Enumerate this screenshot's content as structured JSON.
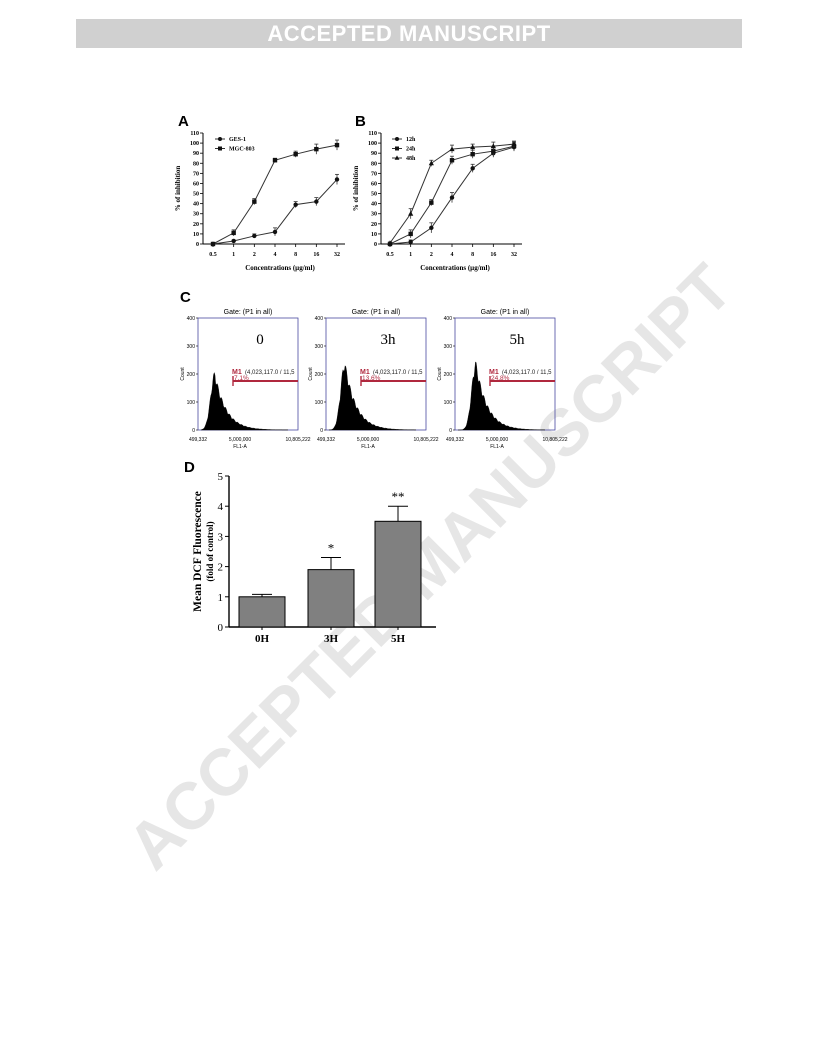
{
  "banner": {
    "text": "ACCEPTED MANUSCRIPT"
  },
  "watermark": {
    "text": "ACCEPTED MANUSCRIPT",
    "color": "#e6e6e6"
  },
  "chart_data": [
    {
      "panel": "A",
      "type": "line",
      "categories": [
        "0.5",
        "1",
        "2",
        "4",
        "8",
        "16",
        "32"
      ],
      "series": [
        {
          "name": "GES-1",
          "values": [
            0,
            3,
            8,
            12,
            39,
            42,
            64
          ],
          "errors": [
            1,
            1,
            2,
            4,
            3,
            4,
            5
          ]
        },
        {
          "name": "MGC-803",
          "values": [
            0,
            11,
            42,
            83,
            89,
            94,
            98
          ],
          "errors": [
            1,
            3,
            3,
            2,
            3,
            5,
            5
          ]
        }
      ],
      "xlabel": "Concentrations (µg/ml)",
      "ylabel": "% of inhibition",
      "yticks": [
        "0",
        "10",
        "20",
        "30",
        "40",
        "50",
        "60",
        "70",
        "80",
        "90",
        "100",
        "110"
      ],
      "ylim": [
        0,
        110
      ],
      "legend": "top-left"
    },
    {
      "panel": "B",
      "type": "line",
      "categories": [
        "0.5",
        "1",
        "2",
        "4",
        "8",
        "16",
        "32"
      ],
      "series": [
        {
          "name": "12h",
          "values": [
            0,
            2,
            16,
            46,
            75,
            90,
            96
          ],
          "errors": [
            1,
            2,
            5,
            5,
            4,
            4,
            4
          ]
        },
        {
          "name": "24h",
          "values": [
            0,
            10,
            41,
            83,
            89,
            92,
            97
          ],
          "errors": [
            1,
            4,
            3,
            4,
            4,
            4,
            4
          ]
        },
        {
          "name": "48h",
          "values": [
            1,
            30,
            80,
            94,
            96,
            97,
            99
          ],
          "errors": [
            1,
            5,
            3,
            4,
            3,
            4,
            3
          ]
        }
      ],
      "xlabel": "Concentrations (µg/ml)",
      "ylabel": "% of inhibition",
      "yticks": [
        "0",
        "10",
        "20",
        "30",
        "40",
        "50",
        "60",
        "70",
        "80",
        "90",
        "100",
        "110"
      ],
      "ylim": [
        0,
        110
      ],
      "legend": "top-left"
    },
    {
      "panel": "C",
      "type": "histogram",
      "histograms": [
        {
          "gate": "Gate: (P1 in all)",
          "label": "0",
          "marker": "M1",
          "marker_range": "(4,023,117.0 / 11,5",
          "percent": "7.1%",
          "peak": 210
        },
        {
          "gate": "Gate: (P1 in all)",
          "label": "3h",
          "marker": "M1",
          "marker_range": "(4,023,117.0 / 11,5",
          "percent": "13.6%",
          "peak": 250
        },
        {
          "gate": "Gate: (P1 in all)",
          "label": "5h",
          "marker": "M1",
          "marker_range": "(4,023,117.0 / 11,5",
          "percent": "24.8%",
          "peak": 250
        }
      ],
      "yticks": [
        "0",
        "100",
        "200",
        "300",
        "400"
      ],
      "ylim": [
        0,
        400
      ],
      "xticks": [
        "499,332",
        "5,000,000",
        "10,805,222"
      ],
      "xlabel": "FL1-A",
      "ylabel": "Count"
    },
    {
      "panel": "D",
      "type": "bar",
      "categories": [
        "0H",
        "3H",
        "5H"
      ],
      "values": [
        1.0,
        1.9,
        3.5
      ],
      "errors": [
        0.08,
        0.4,
        0.5
      ],
      "significance": [
        "",
        "*",
        "**"
      ],
      "ylabel": "Mean DCF Fluorescence",
      "ylabel2": "(fold of control)",
      "yticks": [
        "0",
        "1",
        "2",
        "3",
        "4",
        "5"
      ],
      "ylim": [
        0,
        5
      ]
    }
  ]
}
